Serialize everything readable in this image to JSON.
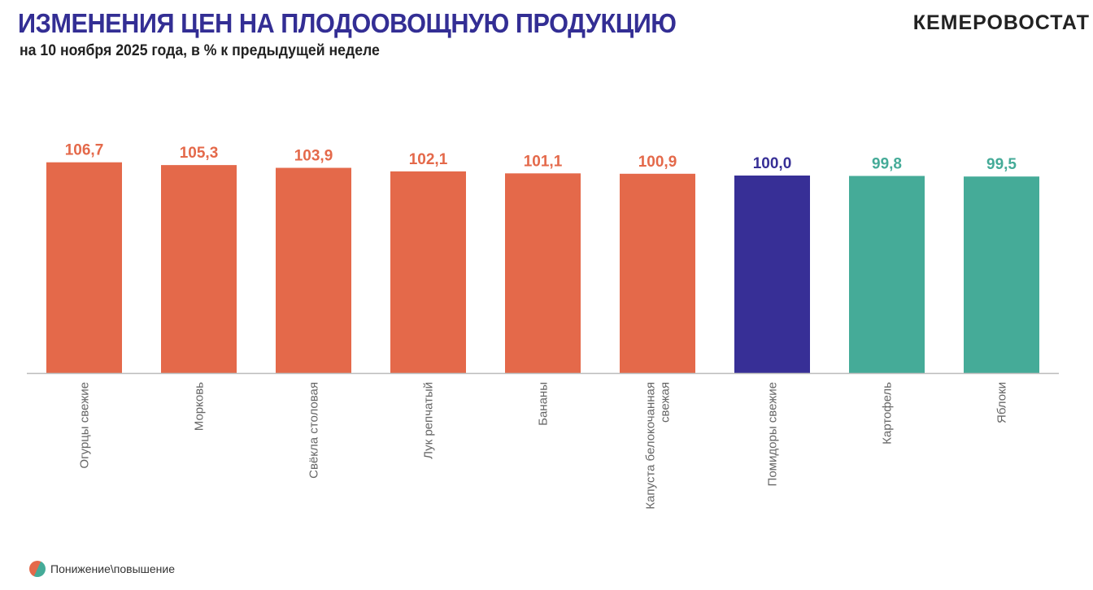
{
  "header": {
    "title": "ИЗМЕНЕНИЯ ЦЕН НА ПЛОДООВОЩНУЮ ПРОДУКЦИЮ",
    "subtitle": "на 10 ноября 2025 года, в % к предыдущей неделе",
    "logo": "КЕМЕРОВОСТАТ"
  },
  "legend": {
    "label": "Понижение\\повышение"
  },
  "colors": {
    "increase": "#E4694A",
    "neutral": "#372F96",
    "decrease": "#45AB98",
    "axis": "#BBBBBB",
    "category": "#666666"
  },
  "chart_data": {
    "type": "bar",
    "title": "ИЗМЕНЕНИЯ ЦЕН НА ПЛОДООВОЩНУЮ ПРОДУКЦИЮ",
    "xlabel": "",
    "ylabel": "",
    "ylim": [
      0,
      110
    ],
    "grid": false,
    "categories": [
      "Огурцы свежие",
      "Морковь",
      "Свёкла столовая",
      "Лук репчатый",
      "Бананы",
      "Капуста белокочанная свежая",
      "Помидоры свежие",
      "Картофель",
      "Яблоки"
    ],
    "values": [
      106.7,
      105.3,
      103.9,
      102.1,
      101.1,
      100.9,
      100.0,
      99.8,
      99.5
    ],
    "value_labels": [
      "106,7",
      "105,3",
      "103,9",
      "102,1",
      "101,1",
      "100,9",
      "100,0",
      "99,8",
      "99,5"
    ],
    "legend": {
      "entries": [
        "Понижение\\повышение"
      ],
      "position": "bottom-left"
    }
  }
}
